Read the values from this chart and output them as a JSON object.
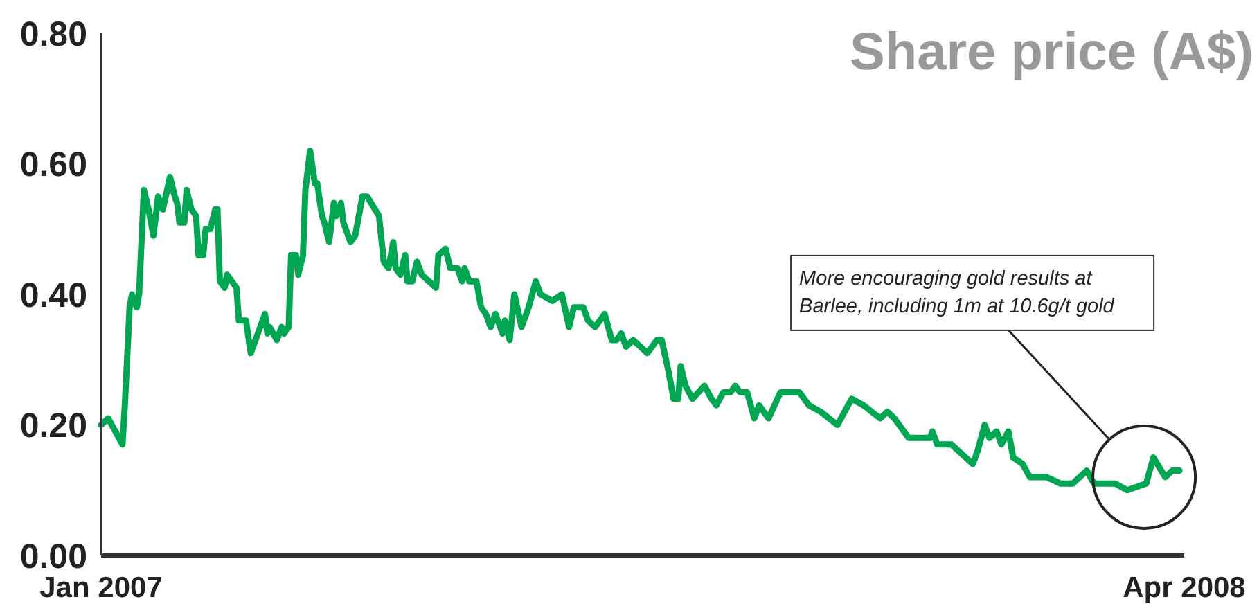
{
  "chart_data": {
    "type": "line",
    "title": "Share price (A$)",
    "x": [
      "2007-01-01",
      "2007-01-04",
      "2007-01-10",
      "2007-01-11",
      "2007-01-13",
      "2007-01-14",
      "2007-01-16",
      "2007-01-17",
      "2007-01-19",
      "2007-01-21",
      "2007-01-23",
      "2007-01-25",
      "2007-01-27",
      "2007-01-30",
      "2007-02-01",
      "2007-02-02",
      "2007-02-03",
      "2007-02-05",
      "2007-02-06",
      "2007-02-08",
      "2007-02-10",
      "2007-02-11",
      "2007-02-13",
      "2007-02-14",
      "2007-02-16",
      "2007-02-18",
      "2007-02-19",
      "2007-02-20",
      "2007-02-22",
      "2007-02-23",
      "2007-02-25",
      "2007-02-27",
      "2007-02-28",
      "2007-03-03",
      "2007-03-05",
      "2007-03-07",
      "2007-03-10",
      "2007-03-11",
      "2007-03-12",
      "2007-03-13",
      "2007-03-16",
      "2007-03-18",
      "2007-03-19",
      "2007-03-21",
      "2007-03-22",
      "2007-03-24",
      "2007-03-25",
      "2007-03-27",
      "2007-03-28",
      "2007-03-30",
      "2007-04-01",
      "2007-04-02",
      "2007-04-04",
      "2007-04-05",
      "2007-04-07",
      "2007-04-09",
      "2007-04-10",
      "2007-04-12",
      "2007-04-13",
      "2007-04-16",
      "2007-04-18",
      "2007-04-21",
      "2007-04-23",
      "2007-04-28",
      "2007-04-30",
      "2007-05-02",
      "2007-05-04",
      "2007-05-05",
      "2007-05-07",
      "2007-05-09",
      "2007-05-10",
      "2007-05-12",
      "2007-05-14",
      "2007-05-16",
      "2007-05-19",
      "2007-05-22",
      "2007-05-23",
      "2007-05-26",
      "2007-05-28",
      "2007-05-31",
      "2007-06-02",
      "2007-06-03",
      "2007-06-05",
      "2007-06-08",
      "2007-06-10",
      "2007-06-12",
      "2007-06-14",
      "2007-06-16",
      "2007-06-19",
      "2007-06-20",
      "2007-06-22",
      "2007-06-24",
      "2007-06-27",
      "2007-06-30",
      "2007-07-03",
      "2007-07-05",
      "2007-07-10",
      "2007-07-14",
      "2007-07-17",
      "2007-07-19",
      "2007-07-23",
      "2007-07-25",
      "2007-07-28",
      "2007-08-01",
      "2007-08-04",
      "2007-08-06",
      "2007-08-08",
      "2007-08-10",
      "2007-08-13",
      "2007-08-19",
      "2007-08-23",
      "2007-08-25",
      "2007-08-28",
      "2007-08-30",
      "2007-09-01",
      "2007-09-02",
      "2007-09-04",
      "2007-09-07",
      "2007-09-12",
      "2007-09-15",
      "2007-09-17",
      "2007-09-20",
      "2007-09-23",
      "2007-09-25",
      "2007-09-27",
      "2007-09-30",
      "2007-10-03",
      "2007-10-05",
      "2007-10-09",
      "2007-10-14",
      "2007-10-18",
      "2007-10-22",
      "2007-10-26",
      "2007-10-31",
      "2007-11-07",
      "2007-11-13",
      "2007-11-18",
      "2007-11-25",
      "2007-11-28",
      "2007-12-01",
      "2007-12-07",
      "2007-12-16",
      "2007-12-17",
      "2007-12-19",
      "2007-12-25",
      "2007-12-28",
      "2008-01-03",
      "2008-01-05",
      "2008-01-08",
      "2008-01-10",
      "2008-01-13",
      "2008-01-15",
      "2008-01-18",
      "2008-01-20",
      "2008-01-24",
      "2008-01-27",
      "2008-02-03",
      "2008-02-09",
      "2008-02-14",
      "2008-02-20",
      "2008-02-23",
      "2008-03-03",
      "2008-03-08",
      "2008-03-16",
      "2008-03-19",
      "2008-03-24",
      "2008-03-27",
      "2008-03-30"
    ],
    "series": [
      {
        "color": "#00a651",
        "values": [
          0.2,
          0.21,
          0.17,
          0.23,
          0.38,
          0.4,
          0.38,
          0.4,
          0.56,
          0.53,
          0.49,
          0.55,
          0.53,
          0.58,
          0.55,
          0.54,
          0.51,
          0.51,
          0.56,
          0.53,
          0.52,
          0.46,
          0.46,
          0.5,
          0.5,
          0.53,
          0.53,
          0.42,
          0.41,
          0.43,
          0.42,
          0.41,
          0.36,
          0.36,
          0.31,
          0.33,
          0.36,
          0.37,
          0.34,
          0.35,
          0.33,
          0.35,
          0.34,
          0.35,
          0.46,
          0.46,
          0.43,
          0.46,
          0.56,
          0.62,
          0.57,
          0.57,
          0.52,
          0.51,
          0.48,
          0.54,
          0.52,
          0.54,
          0.51,
          0.48,
          0.49,
          0.55,
          0.55,
          0.52,
          0.45,
          0.44,
          0.48,
          0.44,
          0.43,
          0.46,
          0.42,
          0.42,
          0.45,
          0.43,
          0.42,
          0.41,
          0.46,
          0.47,
          0.44,
          0.44,
          0.42,
          0.44,
          0.42,
          0.42,
          0.38,
          0.37,
          0.35,
          0.37,
          0.34,
          0.36,
          0.33,
          0.4,
          0.35,
          0.38,
          0.42,
          0.4,
          0.39,
          0.4,
          0.35,
          0.38,
          0.38,
          0.36,
          0.35,
          0.37,
          0.33,
          0.33,
          0.34,
          0.32,
          0.33,
          0.31,
          0.33,
          0.33,
          0.28,
          0.24,
          0.24,
          0.29,
          0.26,
          0.24,
          0.26,
          0.24,
          0.23,
          0.25,
          0.25,
          0.26,
          0.25,
          0.25,
          0.21,
          0.23,
          0.21,
          0.25,
          0.25,
          0.25,
          0.23,
          0.22,
          0.2,
          0.24,
          0.23,
          0.21,
          0.22,
          0.21,
          0.18,
          0.18,
          0.19,
          0.17,
          0.17,
          0.16,
          0.14,
          0.16,
          0.2,
          0.18,
          0.19,
          0.17,
          0.19,
          0.15,
          0.14,
          0.12,
          0.12,
          0.11,
          0.11,
          0.13,
          0.11,
          0.11,
          0.1,
          0.11,
          0.15,
          0.12,
          0.13,
          0.13
        ]
      }
    ],
    "xlim": [
      "2007-01",
      "2008-04"
    ],
    "xticks": [
      {
        "value": "2007-01",
        "label": "Jan 2007"
      },
      {
        "value": "2008-04",
        "label": "Apr 2008"
      }
    ],
    "ylim": [
      0,
      0.8
    ],
    "yticks": [
      {
        "value": 0,
        "label": "0.00"
      },
      {
        "value": 0.2,
        "label": "0.20"
      },
      {
        "value": 0.4,
        "label": "0.40"
      },
      {
        "value": 0.6,
        "label": "0.60"
      },
      {
        "value": 0.8,
        "label": "0.80"
      }
    ],
    "grid": false,
    "marker": "none",
    "line_style": "solid",
    "annotations": [
      "More encouraging gold results at Barlee, including 1m at 10.6g/t gold"
    ]
  }
}
